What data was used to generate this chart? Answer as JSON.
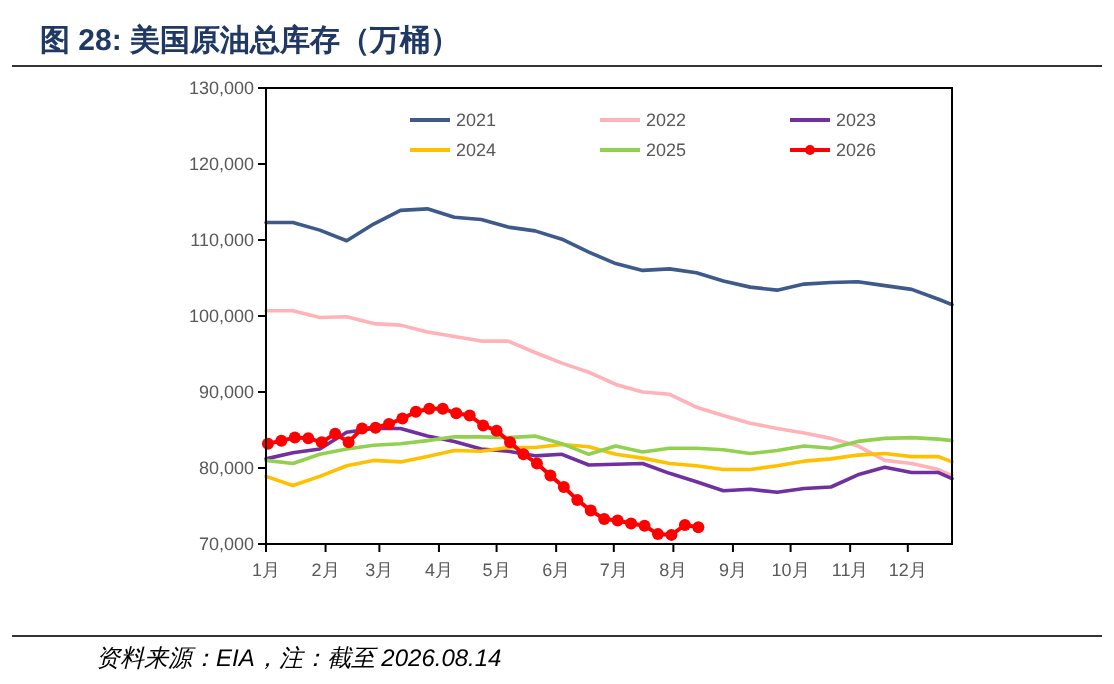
{
  "chart_data": {
    "type": "line",
    "title": "图 28:  美国原油总库存（万桶）",
    "annotations": [
      "资料来源：EIA，注：截至 2026.08.14"
    ],
    "x": [
      "--01-01",
      "--01-15",
      "--01-29",
      "--02-12",
      "--02-26",
      "--03-12",
      "--03-26",
      "--04-09",
      "--04-23",
      "--05-07",
      "--05-21",
      "--06-04",
      "--06-18",
      "--07-02",
      "--07-16",
      "--07-30",
      "--08-13",
      "--08-27",
      "--09-10",
      "--09-24",
      "--10-08",
      "--10-22",
      "--11-05",
      "--11-19",
      "--12-03",
      "--12-17",
      "--12-24"
    ],
    "xlim": [
      "--01-01",
      "--12-24"
    ],
    "xticks": [
      {
        "value": "--01-01",
        "label": "1月"
      },
      {
        "value": "--02-01",
        "label": "2月"
      },
      {
        "value": "--03-01",
        "label": "3月"
      },
      {
        "value": "--04-01",
        "label": "4月"
      },
      {
        "value": "--05-01",
        "label": "5月"
      },
      {
        "value": "--06-01",
        "label": "6月"
      },
      {
        "value": "--07-01",
        "label": "7月"
      },
      {
        "value": "--08-01",
        "label": "8月"
      },
      {
        "value": "--09-01",
        "label": "9月"
      },
      {
        "value": "--10-01",
        "label": "10月"
      },
      {
        "value": "--11-01",
        "label": "11月"
      },
      {
        "value": "--12-01",
        "label": "12月"
      }
    ],
    "ylim": [
      70000,
      130000
    ],
    "yticks": [
      {
        "value": 70000,
        "label": "70,000"
      },
      {
        "value": 80000,
        "label": "80,000"
      },
      {
        "value": 90000,
        "label": "90,000"
      },
      {
        "value": 100000,
        "label": "100,000"
      },
      {
        "value": 110000,
        "label": "110,000"
      },
      {
        "value": 120000,
        "label": "120,000"
      },
      {
        "value": 130000,
        "label": "130,000"
      }
    ],
    "legend": "top",
    "marker": "none",
    "series": [
      {
        "name": "2021",
        "color": "#3d5a8a",
        "values": [
          112300,
          112300,
          111300,
          109900,
          112100,
          113900,
          114100,
          113000,
          112700,
          111700,
          111200,
          110100,
          108400,
          106900,
          106000,
          106200,
          105700,
          104600,
          103800,
          103400,
          104200,
          104400,
          104500,
          104000,
          103500,
          102200,
          101500
        ]
      },
      {
        "name": "2022",
        "color": "#ffb3b8",
        "values": [
          100700,
          100700,
          99800,
          99900,
          99000,
          98800,
          97900,
          97300,
          96700,
          96700,
          95200,
          93800,
          92600,
          91000,
          90000,
          89700,
          88000,
          86900,
          85900,
          85200,
          84600,
          83900,
          82900,
          81000,
          80600,
          79800,
          79000
        ]
      },
      {
        "name": "2023",
        "color": "#7030a0",
        "values": [
          81200,
          82000,
          82500,
          84700,
          85200,
          85200,
          84200,
          83500,
          82500,
          82200,
          81600,
          81800,
          80400,
          80500,
          80600,
          79300,
          78200,
          77000,
          77200,
          76800,
          77300,
          77500,
          79100,
          80100,
          79400,
          79400,
          78600
        ]
      },
      {
        "name": "2024",
        "color": "#ffc000",
        "values": [
          78900,
          77700,
          78900,
          80300,
          81000,
          80800,
          81500,
          82300,
          82200,
          82700,
          82700,
          83100,
          82800,
          81800,
          81300,
          80600,
          80300,
          79800,
          79800,
          80300,
          80900,
          81200,
          81700,
          81900,
          81500,
          81500,
          80800
        ]
      },
      {
        "name": "2025",
        "color": "#92d050",
        "values": [
          81000,
          80600,
          81800,
          82500,
          83000,
          83200,
          83600,
          84100,
          84100,
          84000,
          84200,
          83200,
          81800,
          82900,
          82100,
          82600,
          82600,
          82400,
          81900,
          82300,
          82900,
          82600,
          83500,
          83900,
          84000,
          83800,
          83600
        ]
      },
      {
        "name": "2026",
        "color": "#ff0000",
        "marker": "circle",
        "x": [
          "--01-02",
          "--01-09",
          "--01-16",
          "--01-23",
          "--01-30",
          "--02-06",
          "--02-13",
          "--02-20",
          "--02-27",
          "--03-06",
          "--03-13",
          "--03-20",
          "--03-27",
          "--04-03",
          "--04-10",
          "--04-17",
          "--04-24",
          "--05-01",
          "--05-08",
          "--05-15",
          "--05-22",
          "--05-29",
          "--06-05",
          "--06-12",
          "--06-19",
          "--06-26",
          "--07-03",
          "--07-10",
          "--07-17",
          "--07-24",
          "--07-31",
          "--08-07",
          "--08-14"
        ],
        "values": [
          83200,
          83600,
          84000,
          83900,
          83400,
          84500,
          83400,
          85200,
          85300,
          85800,
          86500,
          87400,
          87800,
          87800,
          87200,
          86900,
          85600,
          84900,
          83400,
          81800,
          80600,
          79000,
          77500,
          75800,
          74400,
          73300,
          73100,
          72700,
          72400,
          71300,
          71200,
          72500,
          72200
        ]
      }
    ]
  }
}
